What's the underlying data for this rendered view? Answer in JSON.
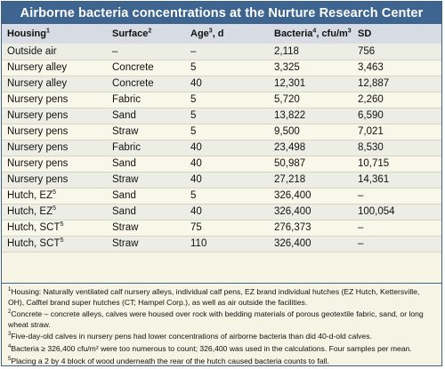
{
  "title": "Airborne bacteria concentrations at the Nurture Research Center",
  "header": {
    "housing": "Housing",
    "housing_sup": "1",
    "surface": "Surface",
    "surface_sup": "2",
    "age": "Age",
    "age_sup": "3",
    "age_suffix": ", d",
    "bacteria": "Bacteria",
    "bacteria_sup": "4",
    "bacteria_suffix": ", cfu/m",
    "bacteria_unit_sup": "3",
    "sd": "SD"
  },
  "rows": [
    {
      "housing": "Outside air",
      "housing_sup": "",
      "surface": "–",
      "age": "–",
      "bacteria": "2,118",
      "sd": "756"
    },
    {
      "housing": "Nursery alley",
      "housing_sup": "",
      "surface": "Concrete",
      "age": "5",
      "bacteria": "3,325",
      "sd": "3,463"
    },
    {
      "housing": "Nursery alley",
      "housing_sup": "",
      "surface": "Concrete",
      "age": "40",
      "bacteria": "12,301",
      "sd": "12,887"
    },
    {
      "housing": "Nursery pens",
      "housing_sup": "",
      "surface": "Fabric",
      "age": "5",
      "bacteria": "5,720",
      "sd": "2,260"
    },
    {
      "housing": "Nursery pens",
      "housing_sup": "",
      "surface": "Sand",
      "age": "5",
      "bacteria": "13,822",
      "sd": "6,590"
    },
    {
      "housing": "Nursery pens",
      "housing_sup": "",
      "surface": "Straw",
      "age": "5",
      "bacteria": "9,500",
      "sd": "7,021"
    },
    {
      "housing": "Nursery pens",
      "housing_sup": "",
      "surface": "Fabric",
      "age": "40",
      "bacteria": "23,498",
      "sd": "8,530"
    },
    {
      "housing": "Nursery pens",
      "housing_sup": "",
      "surface": "Sand",
      "age": "40",
      "bacteria": "50,987",
      "sd": "10,715"
    },
    {
      "housing": "Nursery pens",
      "housing_sup": "",
      "surface": "Straw",
      "age": "40",
      "bacteria": "27,218",
      "sd": "14,361"
    },
    {
      "housing": "Hutch, EZ",
      "housing_sup": "5",
      "surface": "Sand",
      "age": "5",
      "bacteria": "326,400",
      "sd": "–"
    },
    {
      "housing": "Hutch, EZ",
      "housing_sup": "5",
      "surface": "Sand",
      "age": "40",
      "bacteria": "326,400",
      "sd": "100,054"
    },
    {
      "housing": "Hutch, SCT",
      "housing_sup": "5",
      "surface": "Straw",
      "age": "75",
      "bacteria": "276,373",
      "sd": "–"
    },
    {
      "housing": "Hutch, SCT",
      "housing_sup": "5",
      "surface": "Straw",
      "age": "110",
      "bacteria": "326,400",
      "sd": "–"
    }
  ],
  "footnotes": [
    {
      "num": "1",
      "text": "Housing: Naturally ventilated calf nursery alleys, individual calf pens, EZ brand individual hutches (EZ Hutch, Kettersville, OH), Calftel brand super hutches (CT; Hampel Corp.), as well as air outside the facilities."
    },
    {
      "num": "2",
      "text": "Concrete – concrete alleys, calves were housed over rock with bedding materials of porous geotextile fabric, sand, or long wheat straw."
    },
    {
      "num": "3",
      "text": "Five-day-old calves in nursery pens had lower concentrations of airborne bacteria than did 40-d-old calves."
    },
    {
      "num": "4",
      "text": "Bacteria ≥ 326,400 cfu/m² were too numerous to count; 326,400 was used in the calculations. Four samples per mean."
    },
    {
      "num": "5",
      "text": "Placing a 2 by 4 block of wood underneath the rear of the hutch caused bacteria counts to fall."
    }
  ]
}
